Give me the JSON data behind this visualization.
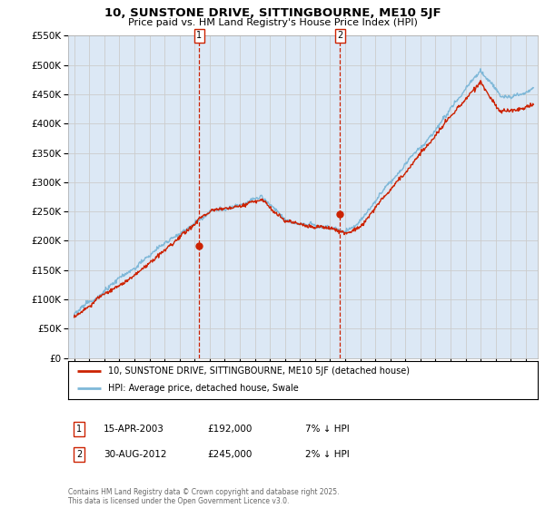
{
  "title": "10, SUNSTONE DRIVE, SITTINGBOURNE, ME10 5JF",
  "subtitle": "Price paid vs. HM Land Registry's House Price Index (HPI)",
  "ylim": [
    0,
    550000
  ],
  "ytick_values": [
    0,
    50000,
    100000,
    150000,
    200000,
    250000,
    300000,
    350000,
    400000,
    450000,
    500000,
    550000
  ],
  "sale1_date": 2003.29,
  "sale1_price": 192000,
  "sale2_date": 2012.66,
  "sale2_price": 245000,
  "hpi_color": "#7fb8d8",
  "price_color": "#cc2200",
  "vline_color": "#cc2200",
  "grid_color": "#cccccc",
  "bg_color": "#dce8f5",
  "legend_label_red": "10, SUNSTONE DRIVE, SITTINGBOURNE, ME10 5JF (detached house)",
  "legend_label_blue": "HPI: Average price, detached house, Swale",
  "footer": "Contains HM Land Registry data © Crown copyright and database right 2025.\nThis data is licensed under the Open Government Licence v3.0.",
  "ann1_date": "15-APR-2003",
  "ann1_price": "£192,000",
  "ann1_pct": "7% ↓ HPI",
  "ann2_date": "30-AUG-2012",
  "ann2_price": "£245,000",
  "ann2_pct": "2% ↓ HPI"
}
